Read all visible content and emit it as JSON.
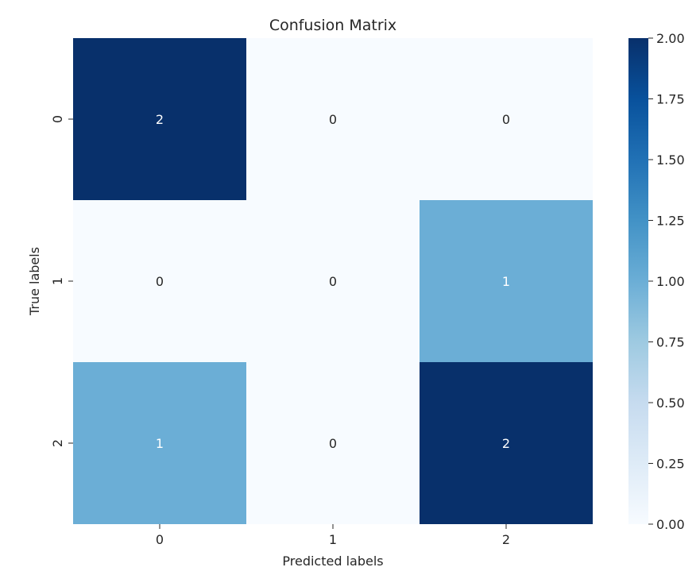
{
  "chart_data": {
    "type": "heatmap",
    "title": "Confusion Matrix",
    "xlabel": "Predicted labels",
    "ylabel": "True labels",
    "x_categories": [
      "0",
      "1",
      "2"
    ],
    "y_categories": [
      "0",
      "1",
      "2"
    ],
    "values": [
      [
        2,
        0,
        0
      ],
      [
        0,
        0,
        1
      ],
      [
        1,
        0,
        2
      ]
    ],
    "colormap": "Blues",
    "vmin": 0,
    "vmax": 2,
    "colorbar_ticks": [
      "0.00",
      "0.25",
      "0.50",
      "0.75",
      "1.00",
      "1.25",
      "1.50",
      "1.75",
      "2.00"
    ],
    "annotations": true,
    "colors": {
      "low": "#f7fbff",
      "mid": "#6baed6",
      "high": "#08306b",
      "text_light": "#ffffff",
      "text_dark": "#262626"
    }
  }
}
